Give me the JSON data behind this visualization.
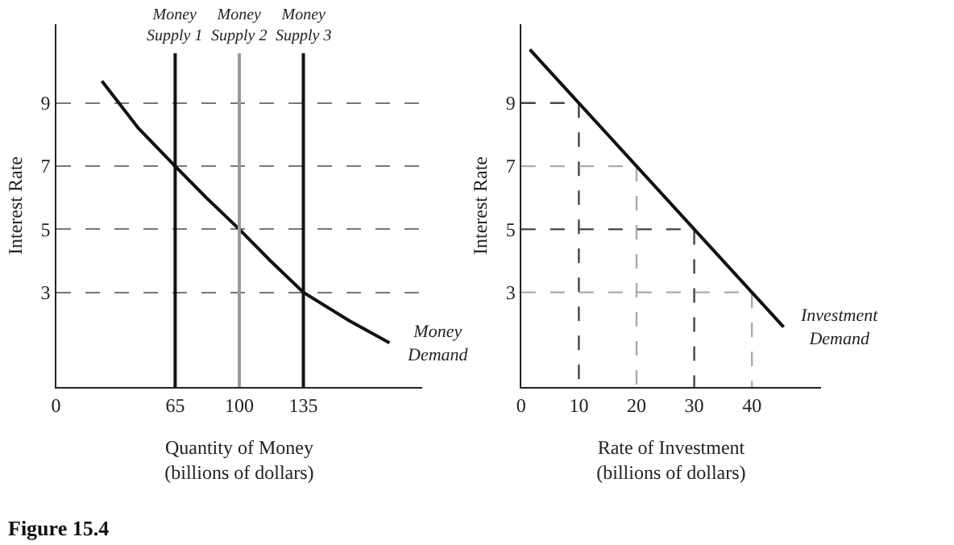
{
  "chart_data": [
    {
      "type": "line",
      "xlabel": "Quantity of Money\n(billions of dollars)",
      "ylabel": "Interest Rate",
      "xlim": [
        0,
        200
      ],
      "ylim": [
        0,
        11.5
      ],
      "xticks": [
        0,
        65,
        100,
        135
      ],
      "yticks": [
        3,
        5,
        7,
        9
      ],
      "grid": "y",
      "annotations": [
        "Figure 15.4"
      ],
      "ref_lines": [
        {
          "axis": "x",
          "value": 65,
          "label": "Money Supply 1",
          "color": "#111111"
        },
        {
          "axis": "x",
          "value": 100,
          "label": "Money Supply 2",
          "color": "#999999"
        },
        {
          "axis": "x",
          "value": 135,
          "label": "Money Supply 3",
          "color": "#111111"
        }
      ],
      "series": [
        {
          "name": "Money Demand",
          "color": "#111111",
          "x": [
            25,
            45,
            65,
            82,
            100,
            117,
            135,
            160,
            182
          ],
          "values": [
            9.7,
            8.2,
            7,
            6,
            5,
            4,
            3,
            2.1,
            1.4
          ]
        }
      ]
    },
    {
      "type": "line",
      "xlabel": "Rate of Investment\n(billions of dollars)",
      "ylabel": "Interest Rate",
      "xlim": [
        0,
        52
      ],
      "ylim": [
        0,
        11.5
      ],
      "xticks": [
        0,
        10,
        20,
        30,
        40
      ],
      "yticks": [
        3,
        5,
        7,
        9
      ],
      "series": [
        {
          "color": "#444444",
          "line_style": "dashed",
          "x": [
            0,
            10,
            10
          ],
          "values": [
            9,
            9,
            0
          ]
        },
        {
          "color": "#aaaaaa",
          "line_style": "dashed",
          "x": [
            0,
            20,
            20
          ],
          "values": [
            7,
            7,
            0
          ]
        },
        {
          "color": "#444444",
          "line_style": "dashed",
          "x": [
            0,
            30,
            30
          ],
          "values": [
            5,
            5,
            0
          ]
        },
        {
          "color": "#aaaaaa",
          "line_style": "dashed",
          "x": [
            0,
            40,
            40
          ],
          "values": [
            3,
            3,
            0
          ]
        },
        {
          "name": "Investment Demand",
          "color": "#111111",
          "x": [
            1.5,
            10,
            20,
            30,
            40,
            45.5
          ],
          "values": [
            10.7,
            9,
            7,
            5,
            3,
            1.9
          ]
        }
      ]
    }
  ]
}
